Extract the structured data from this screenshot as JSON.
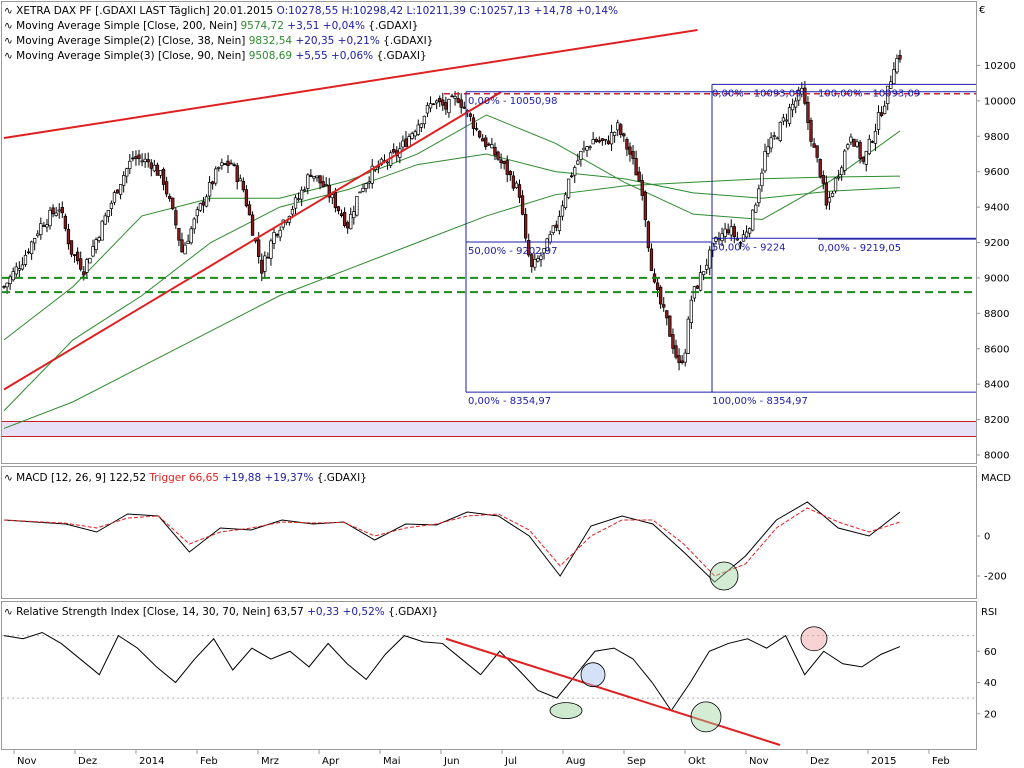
{
  "currency_symbol": "€",
  "colors": {
    "frame": "#9a9a9a",
    "axis_text": "#000000",
    "candle": "#000000",
    "candle_up": "#ffffff",
    "candle_down": "#8b1a1a",
    "ma200": "#2e8b2e",
    "ma38": "#2e8b2e",
    "ma90": "#2e8b2e",
    "trend_red": "#e02020",
    "fib_blue": "#1c1ca8",
    "support_green": "#1a8a1a",
    "resist_red": "#c8202b",
    "band_fill": "#e6e1f7",
    "band_line": "#c8202b",
    "macd_line": "#000000",
    "trigger_line": "#e02020",
    "rsi_line": "#000000",
    "rsi_trend": "#e02020",
    "highlight_green": "#9fd39f",
    "highlight_blue": "#a9c4ee",
    "highlight_red": "#f1a8a8"
  },
  "main_panel": {
    "header": [
      {
        "icon": "trend-icon",
        "name": "XETRA DAX PF [.GDAXI LAST Täglich]",
        "date": "20.01.2015",
        "o": "O:10278,55",
        "h": "H:10298,42",
        "l": "L:10211,39",
        "c": "C:10257,13",
        "chg": "+14,78 +0,14%"
      },
      {
        "icon": "trend-icon",
        "name": "Moving Average Simple [Close, 200, Nein]",
        "value": "9574,72",
        "chg": "+3,51 +0,04%",
        "sym": "{.GDAXI}"
      },
      {
        "icon": "trend-icon",
        "name": "Moving Average Simple(2) [Close, 38, Nein]",
        "value": "9832,54",
        "chg": "+20,35 +0,21%",
        "sym": "{.GDAXI}"
      },
      {
        "icon": "trend-icon",
        "name": "Moving Average Simple(3) [Close, 90, Nein]",
        "value": "9508,69",
        "chg": "+5,55 +0,06%",
        "sym": "{.GDAXI}"
      }
    ],
    "fib_labels": [
      "0,00% - 10050,98",
      "50,00% - 9202,97",
      "0,00% - 8354,97",
      "0,00% - 10093,09",
      "100,00% - 10093,09",
      "50,00% - 9224",
      "0,00% - 9219,05",
      "100,00% - 8354,97"
    ]
  },
  "macd_panel": {
    "header": {
      "icon": "trend-icon",
      "name": "MACD [12, 26, 9]",
      "value": "122,52",
      "trigger_label": "Trigger 66,65",
      "chg": "+19,88 +19,37%",
      "sym": "{.GDAXI}"
    },
    "axis_title": "MACD"
  },
  "rsi_panel": {
    "header": {
      "icon": "trend-icon",
      "name": "Relative Strength Index [Close, 14, 30, 70, Nein]",
      "value": "63,57",
      "chg": "+0,33 +0,52%",
      "sym": "{.GDAXI}"
    },
    "axis_title": "RSI"
  },
  "chart_data": [
    {
      "type": "candlestick",
      "title": "XETRA DAX PF [.GDAXI LAST Täglich]",
      "ylim": [
        8000,
        10400
      ],
      "y_ticks": [
        "10200",
        "10000",
        "9800",
        "9600",
        "9400",
        "9200",
        "9000",
        "8800",
        "8600",
        "8400",
        "8200",
        "8000"
      ],
      "x_ticks": [
        "Nov",
        "Dez",
        "2014",
        "Feb",
        "Mrz",
        "Apr",
        "Mai",
        "Jun",
        "Jul",
        "Aug",
        "Sep",
        "Okt",
        "Nov",
        "Dez",
        "2015",
        "Feb"
      ],
      "close_path": [
        [
          0,
          8950
        ],
        [
          6,
          9100
        ],
        [
          12,
          9300
        ],
        [
          18,
          9400
        ],
        [
          22,
          9150
        ],
        [
          26,
          9050
        ],
        [
          32,
          9300
        ],
        [
          38,
          9550
        ],
        [
          42,
          9680
        ],
        [
          48,
          9650
        ],
        [
          52,
          9550
        ],
        [
          56,
          9300
        ],
        [
          58,
          9150
        ],
        [
          64,
          9400
        ],
        [
          70,
          9620
        ],
        [
          74,
          9650
        ],
        [
          78,
          9500
        ],
        [
          82,
          9200
        ],
        [
          84,
          9050
        ],
        [
          88,
          9250
        ],
        [
          92,
          9350
        ],
        [
          96,
          9450
        ],
        [
          100,
          9600
        ],
        [
          104,
          9520
        ],
        [
          108,
          9420
        ],
        [
          112,
          9300
        ],
        [
          116,
          9500
        ],
        [
          120,
          9600
        ],
        [
          124,
          9650
        ],
        [
          128,
          9700
        ],
        [
          132,
          9800
        ],
        [
          136,
          9900
        ],
        [
          140,
          10000
        ],
        [
          144,
          9960
        ],
        [
          148,
          10020
        ],
        [
          152,
          9900
        ],
        [
          156,
          9780
        ],
        [
          160,
          9700
        ],
        [
          164,
          9600
        ],
        [
          168,
          9480
        ],
        [
          170,
          9200
        ],
        [
          172,
          9050
        ],
        [
          176,
          9150
        ],
        [
          180,
          9300
        ],
        [
          184,
          9550
        ],
        [
          188,
          9700
        ],
        [
          192,
          9780
        ],
        [
          196,
          9760
        ],
        [
          200,
          9850
        ],
        [
          204,
          9700
        ],
        [
          208,
          9500
        ],
        [
          210,
          9200
        ],
        [
          212,
          8950
        ],
        [
          216,
          8750
        ],
        [
          220,
          8500
        ],
        [
          222,
          8600
        ],
        [
          224,
          8880
        ],
        [
          228,
          9050
        ],
        [
          232,
          9200
        ],
        [
          236,
          9280
        ],
        [
          240,
          9200
        ],
        [
          244,
          9350
        ],
        [
          248,
          9700
        ],
        [
          252,
          9820
        ],
        [
          256,
          9950
        ],
        [
          260,
          10050
        ],
        [
          262,
          9880
        ],
        [
          264,
          9720
        ],
        [
          266,
          9600
        ],
        [
          268,
          9400
        ],
        [
          272,
          9600
        ],
        [
          276,
          9820
        ],
        [
          280,
          9650
        ],
        [
          284,
          9850
        ],
        [
          288,
          10050
        ],
        [
          290,
          10210
        ],
        [
          292,
          10257
        ]
      ],
      "bars": 292,
      "annotations": {
        "trendlines": [
          [
            [
              0,
              9790
            ],
            [
              226,
              10400
            ]
          ],
          [
            [
              0,
              8370
            ],
            [
              162,
              10050
            ]
          ]
        ],
        "support_lines": [
          9000,
          8920
        ],
        "resistance_lines": [
          10040
        ],
        "band": [
          8100,
          8170
        ],
        "fib_zones": [
          {
            "levels": [
              10050.98,
              9202.97,
              8354.97
            ]
          },
          {
            "levels": [
              10093.09,
              9224,
              9219.05
            ]
          }
        ]
      }
    },
    {
      "type": "line",
      "title": "Moving Average Simple",
      "series": [
        {
          "name": "Moving Average Simple [Close, 200, Nein]",
          "values": [
            8150,
            8300,
            8500,
            8700,
            8900,
            9050,
            9200,
            9350,
            9470,
            9520,
            9540,
            9560,
            9570,
            9575
          ]
        },
        {
          "name": "Moving Average Simple(2) [Close, 38, Nein]",
          "values": [
            8650,
            8950,
            9350,
            9450,
            9450,
            9550,
            9700,
            9920,
            9760,
            9540,
            9360,
            9330,
            9550,
            9830
          ]
        },
        {
          "name": "Moving Average Simple(3) [Close, 90, Nein]",
          "values": [
            8250,
            8650,
            8900,
            9200,
            9400,
            9500,
            9640,
            9700,
            9600,
            9560,
            9480,
            9450,
            9490,
            9510
          ]
        }
      ]
    },
    {
      "type": "line",
      "title": "MACD [12, 26, 9]",
      "ylim": [
        -300,
        250
      ],
      "y_ticks": [
        "0",
        "-200"
      ],
      "series": [
        {
          "name": "MACD",
          "values": [
            80,
            70,
            60,
            20,
            110,
            100,
            -80,
            40,
            30,
            80,
            60,
            70,
            -20,
            60,
            55,
            120,
            100,
            0,
            -200,
            50,
            100,
            60,
            -80,
            -230,
            -100,
            80,
            170,
            40,
            0,
            120
          ]
        },
        {
          "name": "Trigger",
          "values": [
            80,
            72,
            64,
            40,
            90,
            100,
            -40,
            20,
            40,
            70,
            65,
            68,
            0,
            40,
            60,
            100,
            110,
            30,
            -150,
            0,
            80,
            80,
            -40,
            -200,
            -140,
            40,
            140,
            70,
            20,
            70
          ]
        }
      ]
    },
    {
      "type": "line",
      "title": "Relative Strength Index [Close, 14, 30, 70, Nein]",
      "ylim": [
        0,
        80
      ],
      "y_ticks": [
        "60",
        "40",
        "20"
      ],
      "series": [
        {
          "name": "RSI",
          "values": [
            70,
            68,
            72,
            65,
            55,
            45,
            70,
            62,
            50,
            40,
            55,
            68,
            48,
            62,
            55,
            60,
            50,
            65,
            52,
            42,
            58,
            70,
            66,
            65,
            55,
            45,
            60,
            48,
            35,
            30,
            45,
            60,
            62,
            55,
            40,
            22,
            40,
            60,
            65,
            68,
            62,
            70,
            45,
            60,
            52,
            50,
            58,
            63
          ]
        }
      ]
    }
  ]
}
